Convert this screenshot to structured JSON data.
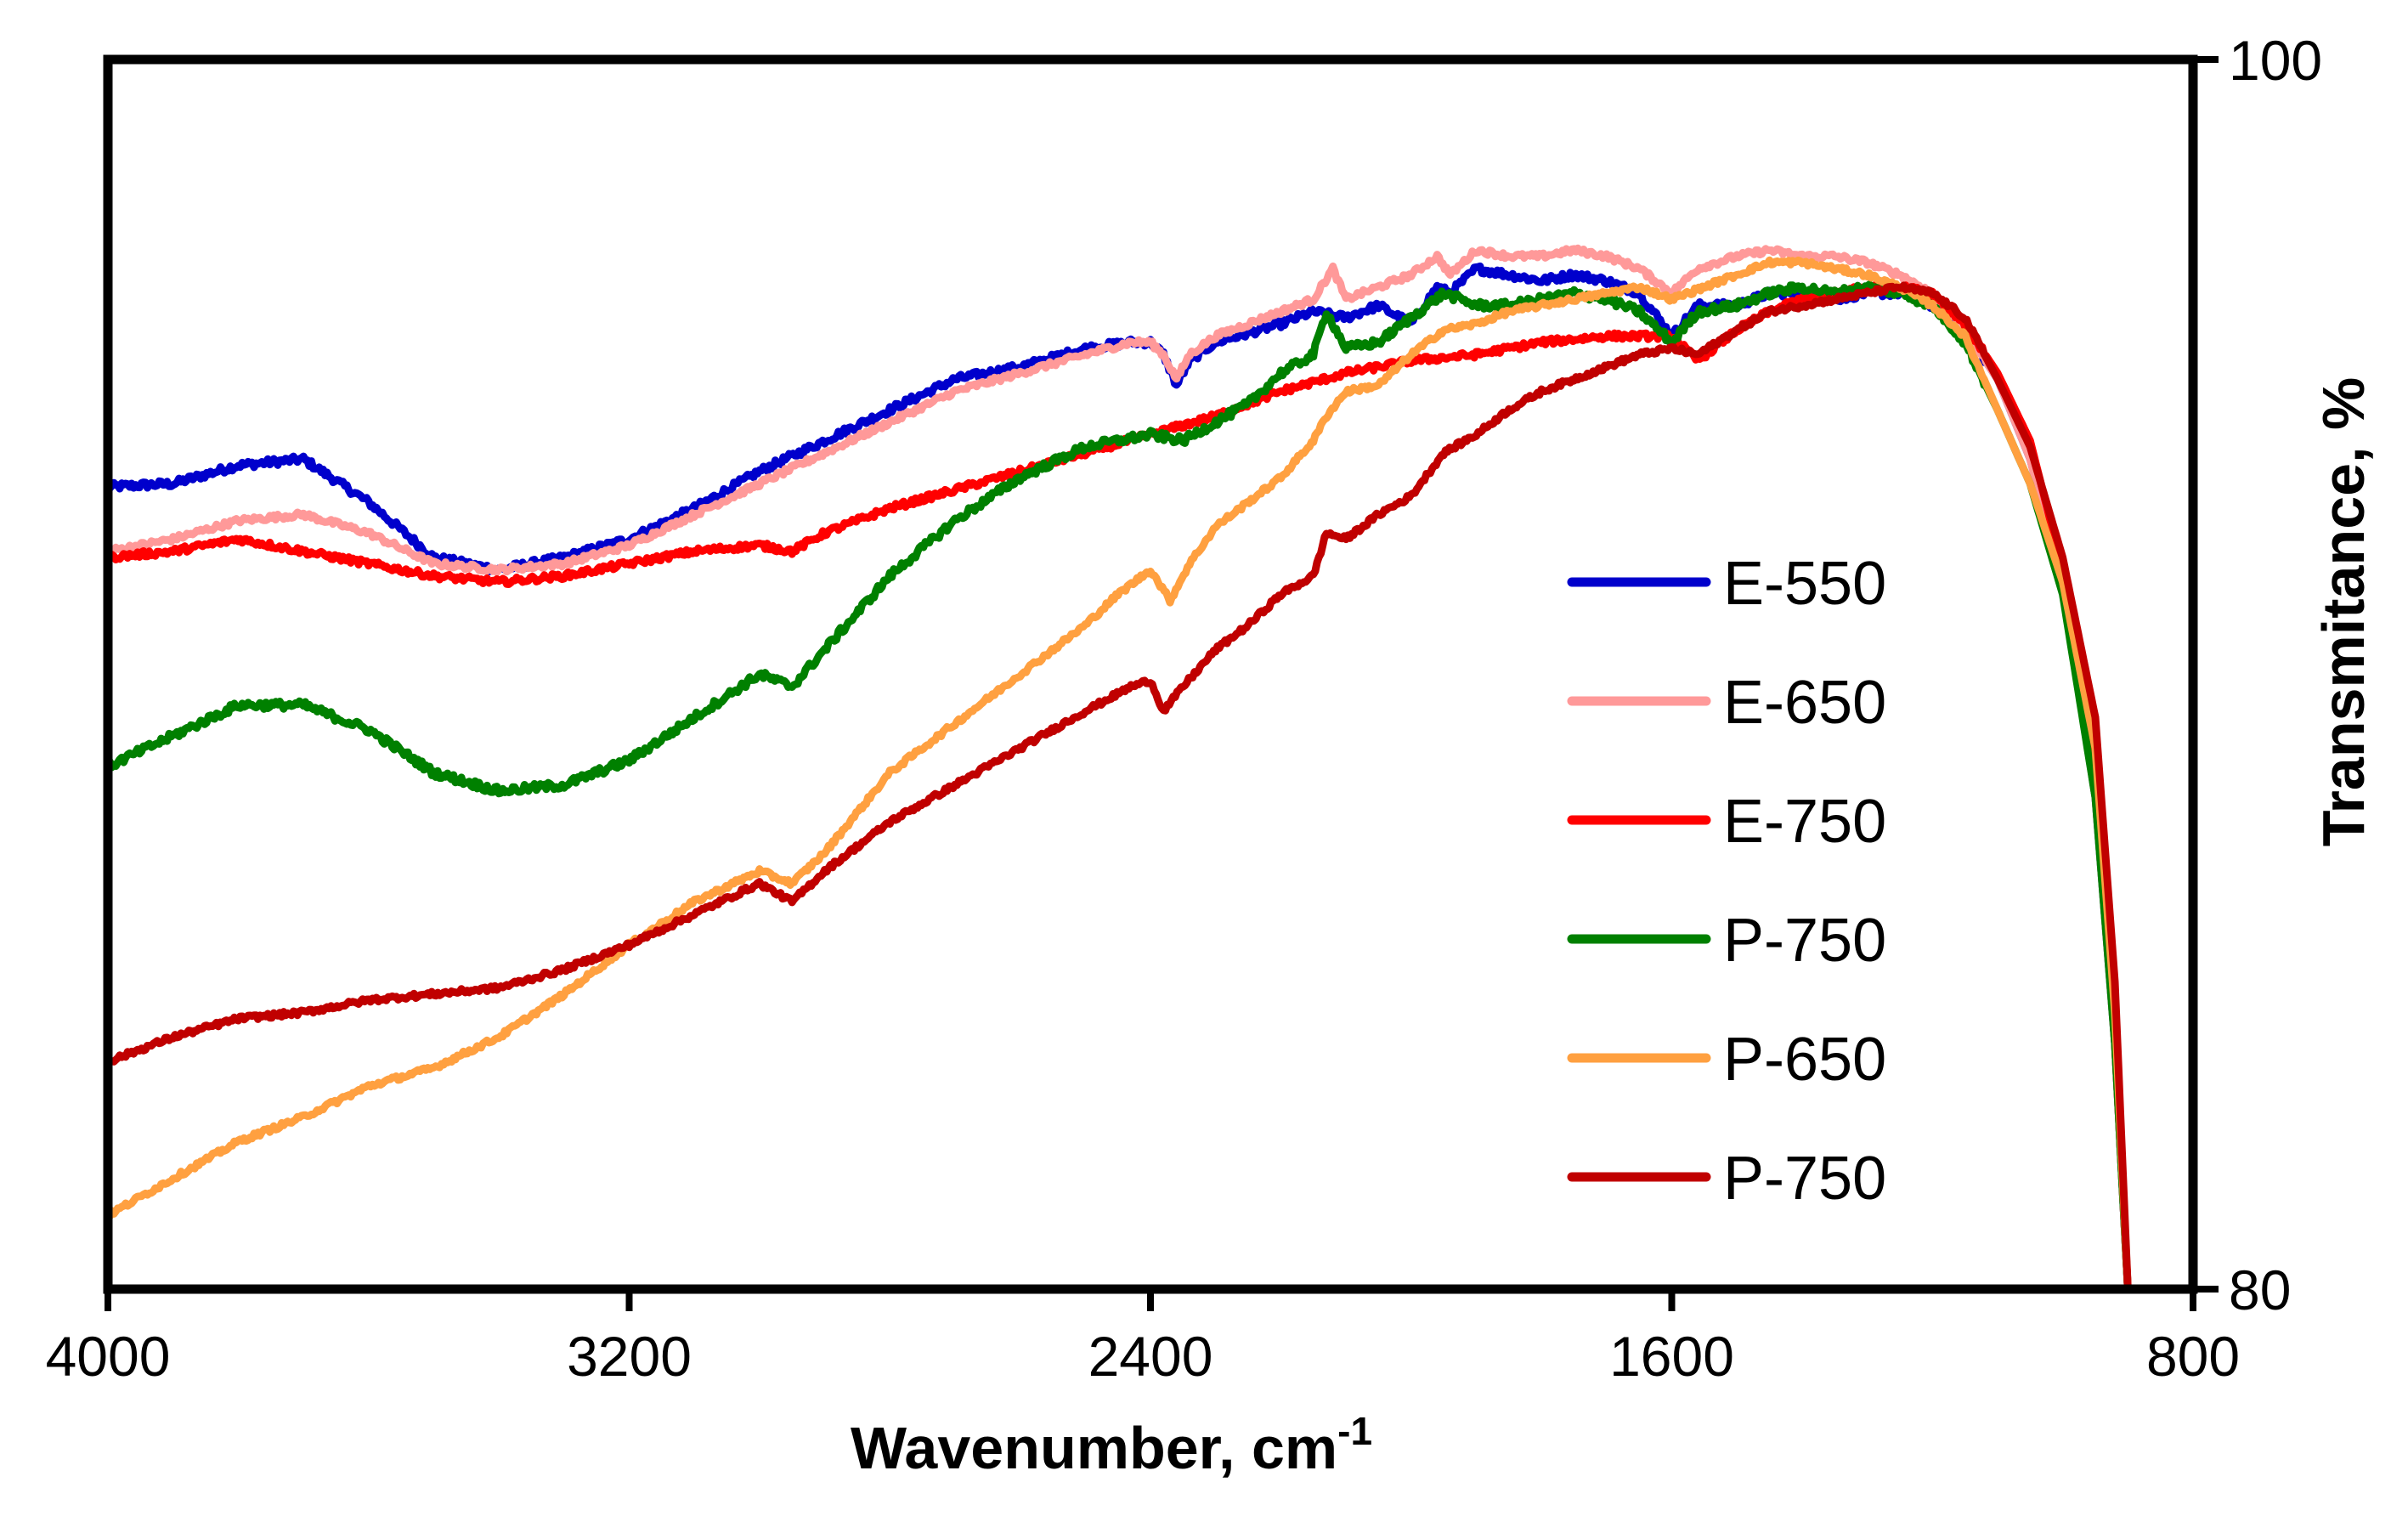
{
  "chart_data": {
    "type": "line",
    "title": "",
    "xlabel": "Wavenumber, cm",
    "xlabel_superscript": "-1",
    "ylabel": "Transmitance, %",
    "xlim": [
      4000,
      800
    ],
    "ylim": [
      80,
      100
    ],
    "x_reversed": true,
    "x_ticks": [
      "4000",
      "3200",
      "2400",
      "1600",
      "800"
    ],
    "y_ticks": [
      "100",
      "80"
    ],
    "grid": false,
    "legend_position": "center-right",
    "series": [
      {
        "name": "E-550",
        "color": "#0000cc",
        "noise": 0.12,
        "points": [
          [
            4000,
            93.05
          ],
          [
            3900,
            93.1
          ],
          [
            3800,
            93.4
          ],
          [
            3700,
            93.5
          ],
          [
            3600,
            92.8
          ],
          [
            3500,
            91.9
          ],
          [
            3400,
            91.7
          ],
          [
            3300,
            91.9
          ],
          [
            3200,
            92.2
          ],
          [
            3100,
            92.7
          ],
          [
            3000,
            93.3
          ],
          [
            2900,
            93.8
          ],
          [
            2800,
            94.3
          ],
          [
            2700,
            94.8
          ],
          [
            2600,
            95.0
          ],
          [
            2500,
            95.3
          ],
          [
            2430,
            95.4
          ],
          [
            2400,
            95.4
          ],
          [
            2380,
            95.2
          ],
          [
            2360,
            94.7
          ],
          [
            2340,
            95.1
          ],
          [
            2300,
            95.4
          ],
          [
            2200,
            95.7
          ],
          [
            2150,
            95.9
          ],
          [
            2100,
            95.8
          ],
          [
            2050,
            96.0
          ],
          [
            2000,
            95.7
          ],
          [
            1960,
            96.3
          ],
          [
            1940,
            96.2
          ],
          [
            1900,
            96.6
          ],
          [
            1850,
            96.5
          ],
          [
            1800,
            96.4
          ],
          [
            1750,
            96.5
          ],
          [
            1700,
            96.4
          ],
          [
            1650,
            96.2
          ],
          [
            1600,
            95.5
          ],
          [
            1560,
            96.0
          ],
          [
            1500,
            96.0
          ],
          [
            1450,
            96.2
          ],
          [
            1400,
            96.2
          ],
          [
            1350,
            96.1
          ],
          [
            1300,
            96.2
          ],
          [
            1250,
            96.2
          ],
          [
            1200,
            96.0
          ],
          [
            1150,
            95.6
          ],
          [
            1100,
            94.8
          ],
          [
            1050,
            93.5
          ],
          [
            1000,
            91.5
          ],
          [
            950,
            88.0
          ],
          [
            920,
            84.0
          ],
          [
            900,
            80.0
          ]
        ]
      },
      {
        "name": "E-650",
        "color": "#ff9999",
        "noise": 0.09,
        "points": [
          [
            4000,
            92.0
          ],
          [
            3900,
            92.2
          ],
          [
            3800,
            92.5
          ],
          [
            3700,
            92.6
          ],
          [
            3600,
            92.3
          ],
          [
            3500,
            91.8
          ],
          [
            3400,
            91.7
          ],
          [
            3300,
            91.8
          ],
          [
            3200,
            92.1
          ],
          [
            3100,
            92.6
          ],
          [
            3000,
            93.1
          ],
          [
            2900,
            93.6
          ],
          [
            2800,
            94.1
          ],
          [
            2700,
            94.6
          ],
          [
            2600,
            94.9
          ],
          [
            2500,
            95.2
          ],
          [
            2430,
            95.4
          ],
          [
            2400,
            95.4
          ],
          [
            2380,
            95.2
          ],
          [
            2360,
            94.8
          ],
          [
            2340,
            95.2
          ],
          [
            2300,
            95.5
          ],
          [
            2200,
            95.9
          ],
          [
            2150,
            96.1
          ],
          [
            2120,
            96.6
          ],
          [
            2100,
            96.1
          ],
          [
            2050,
            96.3
          ],
          [
            2000,
            96.5
          ],
          [
            1960,
            96.8
          ],
          [
            1940,
            96.5
          ],
          [
            1900,
            96.9
          ],
          [
            1850,
            96.8
          ],
          [
            1800,
            96.8
          ],
          [
            1750,
            96.9
          ],
          [
            1700,
            96.8
          ],
          [
            1650,
            96.6
          ],
          [
            1600,
            96.2
          ],
          [
            1560,
            96.6
          ],
          [
            1500,
            96.8
          ],
          [
            1450,
            96.9
          ],
          [
            1400,
            96.8
          ],
          [
            1350,
            96.8
          ],
          [
            1300,
            96.7
          ],
          [
            1250,
            96.5
          ],
          [
            1200,
            96.2
          ],
          [
            1150,
            95.6
          ],
          [
            1100,
            94.8
          ],
          [
            1050,
            93.5
          ],
          [
            1000,
            91.4
          ],
          [
            950,
            88.0
          ],
          [
            920,
            84.0
          ],
          [
            900,
            80.0
          ]
        ]
      },
      {
        "name": "E-750",
        "color": "#ff0000",
        "noise": 0.1,
        "points": [
          [
            4000,
            91.9
          ],
          [
            3900,
            92.0
          ],
          [
            3800,
            92.2
          ],
          [
            3700,
            92.0
          ],
          [
            3600,
            91.8
          ],
          [
            3500,
            91.6
          ],
          [
            3400,
            91.5
          ],
          [
            3300,
            91.6
          ],
          [
            3200,
            91.8
          ],
          [
            3100,
            92.0
          ],
          [
            3000,
            92.1
          ],
          [
            2950,
            92.0
          ],
          [
            2900,
            92.3
          ],
          [
            2800,
            92.7
          ],
          [
            2700,
            93.0
          ],
          [
            2600,
            93.3
          ],
          [
            2500,
            93.6
          ],
          [
            2400,
            93.9
          ],
          [
            2300,
            94.2
          ],
          [
            2200,
            94.6
          ],
          [
            2100,
            94.9
          ],
          [
            2000,
            95.1
          ],
          [
            1900,
            95.2
          ],
          [
            1800,
            95.4
          ],
          [
            1700,
            95.5
          ],
          [
            1600,
            95.5
          ],
          [
            1560,
            95.1
          ],
          [
            1500,
            95.6
          ],
          [
            1450,
            95.9
          ],
          [
            1400,
            96.1
          ],
          [
            1350,
            96.2
          ],
          [
            1300,
            96.3
          ],
          [
            1250,
            96.3
          ],
          [
            1200,
            96.2
          ],
          [
            1150,
            95.7
          ],
          [
            1100,
            94.9
          ],
          [
            1050,
            93.8
          ],
          [
            1000,
            91.7
          ],
          [
            950,
            88.5
          ],
          [
            920,
            84.0
          ],
          [
            900,
            80.0
          ]
        ]
      },
      {
        "name": "P-750",
        "color": "#008000",
        "noise": 0.13,
        "points": [
          [
            4000,
            88.5
          ],
          [
            3900,
            89.0
          ],
          [
            3800,
            89.5
          ],
          [
            3700,
            89.5
          ],
          [
            3600,
            89.1
          ],
          [
            3500,
            88.4
          ],
          [
            3400,
            88.1
          ],
          [
            3300,
            88.2
          ],
          [
            3200,
            88.6
          ],
          [
            3100,
            89.3
          ],
          [
            3000,
            90.0
          ],
          [
            2950,
            89.8
          ],
          [
            2900,
            90.4
          ],
          [
            2800,
            91.6
          ],
          [
            2700,
            92.5
          ],
          [
            2600,
            93.2
          ],
          [
            2500,
            93.7
          ],
          [
            2400,
            93.9
          ],
          [
            2350,
            93.8
          ],
          [
            2300,
            94.1
          ],
          [
            2250,
            94.4
          ],
          [
            2200,
            94.9
          ],
          [
            2150,
            95.2
          ],
          [
            2130,
            95.9
          ],
          [
            2100,
            95.3
          ],
          [
            2050,
            95.4
          ],
          [
            2000,
            95.8
          ],
          [
            1950,
            96.2
          ],
          [
            1900,
            96.0
          ],
          [
            1850,
            96.0
          ],
          [
            1800,
            96.1
          ],
          [
            1750,
            96.2
          ],
          [
            1700,
            96.1
          ],
          [
            1650,
            95.9
          ],
          [
            1600,
            95.4
          ],
          [
            1560,
            95.9
          ],
          [
            1500,
            96.0
          ],
          [
            1450,
            96.2
          ],
          [
            1400,
            96.3
          ],
          [
            1350,
            96.2
          ],
          [
            1300,
            96.3
          ],
          [
            1250,
            96.2
          ],
          [
            1200,
            96.0
          ],
          [
            1150,
            95.4
          ],
          [
            1100,
            94.3
          ],
          [
            1050,
            93.1
          ],
          [
            1000,
            91.3
          ],
          [
            950,
            88.0
          ],
          [
            920,
            84.0
          ],
          [
            900,
            80.0
          ]
        ]
      },
      {
        "name": "P-650",
        "color": "#ffa040",
        "noise": 0.08,
        "points": [
          [
            4000,
            81.2
          ],
          [
            3900,
            81.8
          ],
          [
            3800,
            82.4
          ],
          [
            3700,
            82.8
          ],
          [
            3600,
            83.3
          ],
          [
            3500,
            83.6
          ],
          [
            3400,
            84.1
          ],
          [
            3300,
            84.8
          ],
          [
            3200,
            85.6
          ],
          [
            3100,
            86.3
          ],
          [
            3000,
            86.8
          ],
          [
            2950,
            86.6
          ],
          [
            2900,
            87.1
          ],
          [
            2800,
            88.4
          ],
          [
            2700,
            89.2
          ],
          [
            2600,
            90.0
          ],
          [
            2500,
            90.8
          ],
          [
            2450,
            91.3
          ],
          [
            2400,
            91.7
          ],
          [
            2370,
            91.2
          ],
          [
            2340,
            91.8
          ],
          [
            2300,
            92.4
          ],
          [
            2200,
            93.2
          ],
          [
            2150,
            93.8
          ],
          [
            2130,
            94.2
          ],
          [
            2100,
            94.6
          ],
          [
            2050,
            94.7
          ],
          [
            2000,
            95.2
          ],
          [
            1950,
            95.6
          ],
          [
            1900,
            95.7
          ],
          [
            1850,
            95.9
          ],
          [
            1800,
            96.0
          ],
          [
            1750,
            96.1
          ],
          [
            1700,
            96.2
          ],
          [
            1650,
            96.3
          ],
          [
            1600,
            96.1
          ],
          [
            1550,
            96.3
          ],
          [
            1500,
            96.5
          ],
          [
            1450,
            96.7
          ],
          [
            1400,
            96.7
          ],
          [
            1350,
            96.6
          ],
          [
            1300,
            96.5
          ],
          [
            1250,
            96.3
          ],
          [
            1200,
            96.0
          ],
          [
            1150,
            95.5
          ],
          [
            1100,
            94.3
          ],
          [
            1050,
            93.1
          ],
          [
            1000,
            91.5
          ],
          [
            950,
            88.8
          ],
          [
            920,
            84.5
          ],
          [
            900,
            80.0
          ]
        ]
      },
      {
        "name": "P-750",
        "color": "#c00000",
        "noise": 0.08,
        "points": [
          [
            4000,
            83.7
          ],
          [
            3900,
            84.1
          ],
          [
            3800,
            84.4
          ],
          [
            3700,
            84.5
          ],
          [
            3600,
            84.7
          ],
          [
            3500,
            84.8
          ],
          [
            3400,
            84.9
          ],
          [
            3300,
            85.2
          ],
          [
            3200,
            85.6
          ],
          [
            3100,
            86.1
          ],
          [
            3000,
            86.6
          ],
          [
            2950,
            86.3
          ],
          [
            2900,
            86.8
          ],
          [
            2800,
            87.6
          ],
          [
            2700,
            88.2
          ],
          [
            2600,
            88.8
          ],
          [
            2500,
            89.4
          ],
          [
            2430,
            89.8
          ],
          [
            2400,
            89.9
          ],
          [
            2380,
            89.4
          ],
          [
            2350,
            89.8
          ],
          [
            2300,
            90.4
          ],
          [
            2250,
            90.8
          ],
          [
            2200,
            91.3
          ],
          [
            2150,
            91.6
          ],
          [
            2130,
            92.3
          ],
          [
            2100,
            92.2
          ],
          [
            2050,
            92.6
          ],
          [
            2000,
            92.9
          ],
          [
            1950,
            93.6
          ],
          [
            1900,
            93.9
          ],
          [
            1850,
            94.3
          ],
          [
            1800,
            94.6
          ],
          [
            1750,
            94.8
          ],
          [
            1700,
            95.0
          ],
          [
            1650,
            95.2
          ],
          [
            1600,
            95.3
          ],
          [
            1560,
            95.2
          ],
          [
            1500,
            95.6
          ],
          [
            1450,
            95.9
          ],
          [
            1400,
            96.0
          ],
          [
            1350,
            96.1
          ],
          [
            1300,
            96.2
          ],
          [
            1250,
            96.3
          ],
          [
            1200,
            96.2
          ],
          [
            1150,
            95.8
          ],
          [
            1100,
            94.8
          ],
          [
            1050,
            93.7
          ],
          [
            1000,
            91.9
          ],
          [
            950,
            89.3
          ],
          [
            920,
            85.0
          ],
          [
            900,
            80.0
          ]
        ]
      }
    ]
  }
}
